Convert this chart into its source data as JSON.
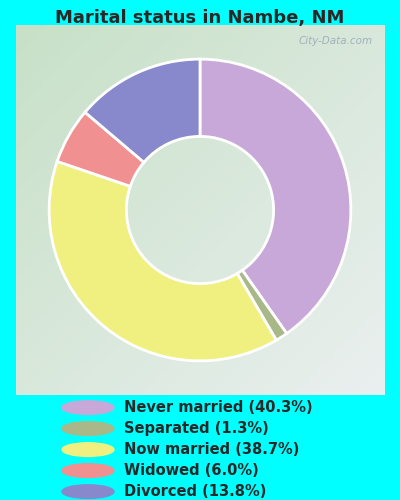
{
  "title": "Marital status in Nambe, NM",
  "slices": [
    {
      "label": "Never married (40.3%)",
      "value": 40.3,
      "color": "#C8A8D8"
    },
    {
      "label": "Separated (1.3%)",
      "value": 1.3,
      "color": "#A8B888"
    },
    {
      "label": "Now married (38.7%)",
      "value": 38.7,
      "color": "#F0F080"
    },
    {
      "label": "Widowed (6.0%)",
      "value": 6.0,
      "color": "#F09090"
    },
    {
      "label": "Divorced (13.8%)",
      "value": 13.8,
      "color": "#8888CC"
    }
  ],
  "bg_color_outer": "#00FFFF",
  "chart_bg_top_left": "#D8EED8",
  "chart_bg_bottom_right": "#E8F8F0",
  "title_color": "#282828",
  "legend_text_color": "#282828",
  "title_fontsize": 13,
  "legend_fontsize": 10.5,
  "donut_width": 0.42,
  "start_angle": 90,
  "wedge_edge_color": "white",
  "wedge_linewidth": 2.0
}
